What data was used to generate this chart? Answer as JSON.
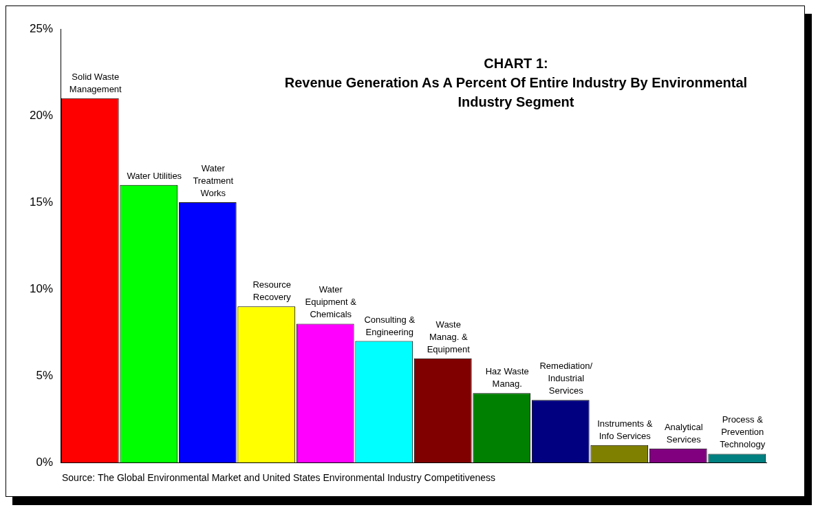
{
  "chart_data": {
    "type": "bar",
    "title": "CHART 1: Revenue Generation As A Percent Of Entire Industry By Environmental Industry Segment",
    "categories": [
      "Solid Waste Management",
      "Water Utilities",
      "Water Treatment Works",
      "Resource Recovery",
      "Water Equipment & Chemicals",
      "Consulting & Engineering",
      "Waste Manag. & Equipment",
      "Haz Waste Manag.",
      "Remediation/ Industrial Services",
      "Instruments & Info Services",
      "Analytical Services",
      "Process & Prevention Technology"
    ],
    "values": [
      21,
      16,
      15,
      9,
      8,
      7,
      6,
      4,
      3.6,
      1,
      0.8,
      0.5
    ],
    "colors": [
      "#ff0000",
      "#00ff00",
      "#0000ff",
      "#ffff00",
      "#ff00ff",
      "#00ffff",
      "#800000",
      "#008000",
      "#000080",
      "#808000",
      "#800080",
      "#008080"
    ],
    "ylim": [
      0,
      25
    ],
    "yticks": [
      {
        "value": 0,
        "label": "0%"
      },
      {
        "value": 5,
        "label": "5%"
      },
      {
        "value": 10,
        "label": "10%"
      },
      {
        "value": 15,
        "label": "15%"
      },
      {
        "value": 20,
        "label": "20%"
      },
      {
        "value": 25,
        "label": "25%"
      }
    ],
    "annotations": [
      "Source: The Global Environmental Market and United States Environmental Industry Competitiveness"
    ]
  }
}
